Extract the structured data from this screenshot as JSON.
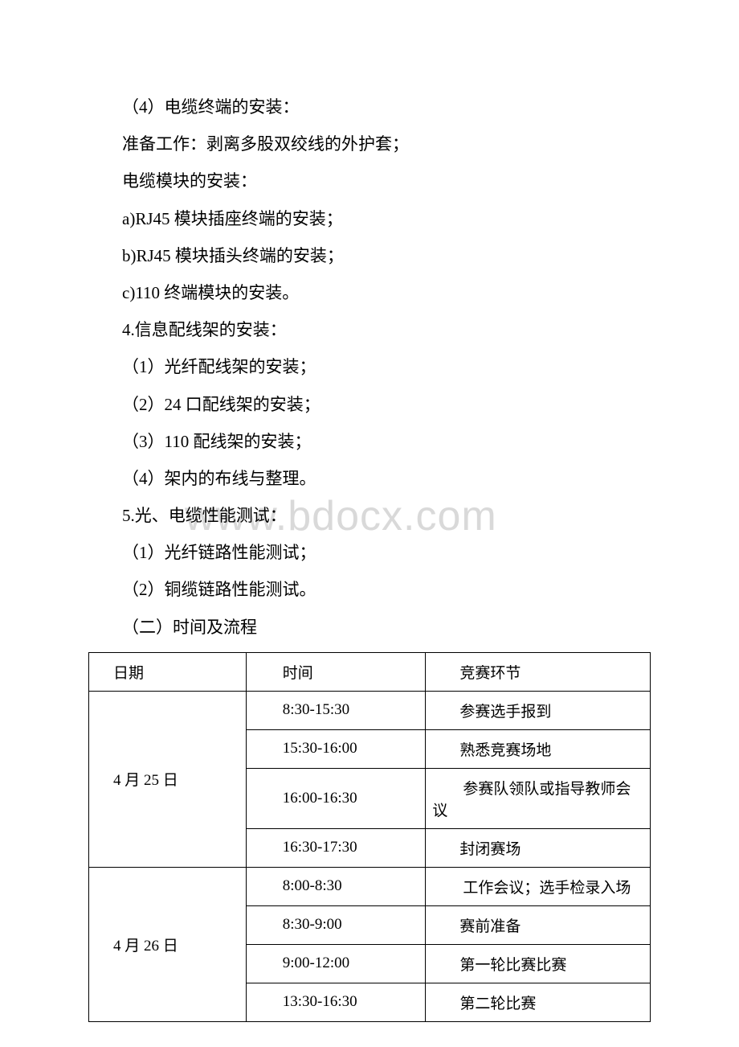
{
  "watermark": "www.bdocx.com",
  "lines": [
    "（4）电缆终端的安装：",
    "准备工作：剥离多股双绞线的外护套；",
    "电缆模块的安装：",
    "a)RJ45 模块插座终端的安装；",
    "b)RJ45 模块插头终端的安装；",
    "c)110 终端模块的安装。",
    "4.信息配线架的安装：",
    "（1）光纤配线架的安装；",
    "（2）24 口配线架的安装；",
    "（3）110 配线架的安装；",
    "（4）架内的布线与整理。",
    "5.光、电缆性能测试：",
    "（1）光纤链路性能测试；",
    "（2）铜缆链路性能测试。",
    "（二）时间及流程"
  ],
  "table": {
    "headers": {
      "date": "日期",
      "time": "时间",
      "event": "竞赛环节"
    },
    "rows": [
      {
        "date": "4 月 25 日",
        "rowspan": 4,
        "entries": [
          {
            "time": "8:30-15:30",
            "event": "参赛选手报到",
            "multiline": false
          },
          {
            "time": "15:30-16:00",
            "event": "熟悉竞赛场地",
            "multiline": false
          },
          {
            "time": "16:00-16:30",
            "event": "参赛队领队或指导教师会议",
            "multiline": true
          },
          {
            "time": "16:30-17:30",
            "event": "封闭赛场",
            "multiline": false
          }
        ]
      },
      {
        "date": "4 月 26 日",
        "rowspan": 4,
        "entries": [
          {
            "time": "8:00-8:30",
            "event": "工作会议；选手检录入场",
            "multiline": true
          },
          {
            "time": "8:30-9:00",
            "event": "赛前准备",
            "multiline": false
          },
          {
            "time": "9:00-12:00",
            "event": "第一轮比赛比赛",
            "multiline": false
          },
          {
            "time": "13:30-16:30",
            "event": "第二轮比赛",
            "multiline": false
          }
        ]
      }
    ]
  }
}
